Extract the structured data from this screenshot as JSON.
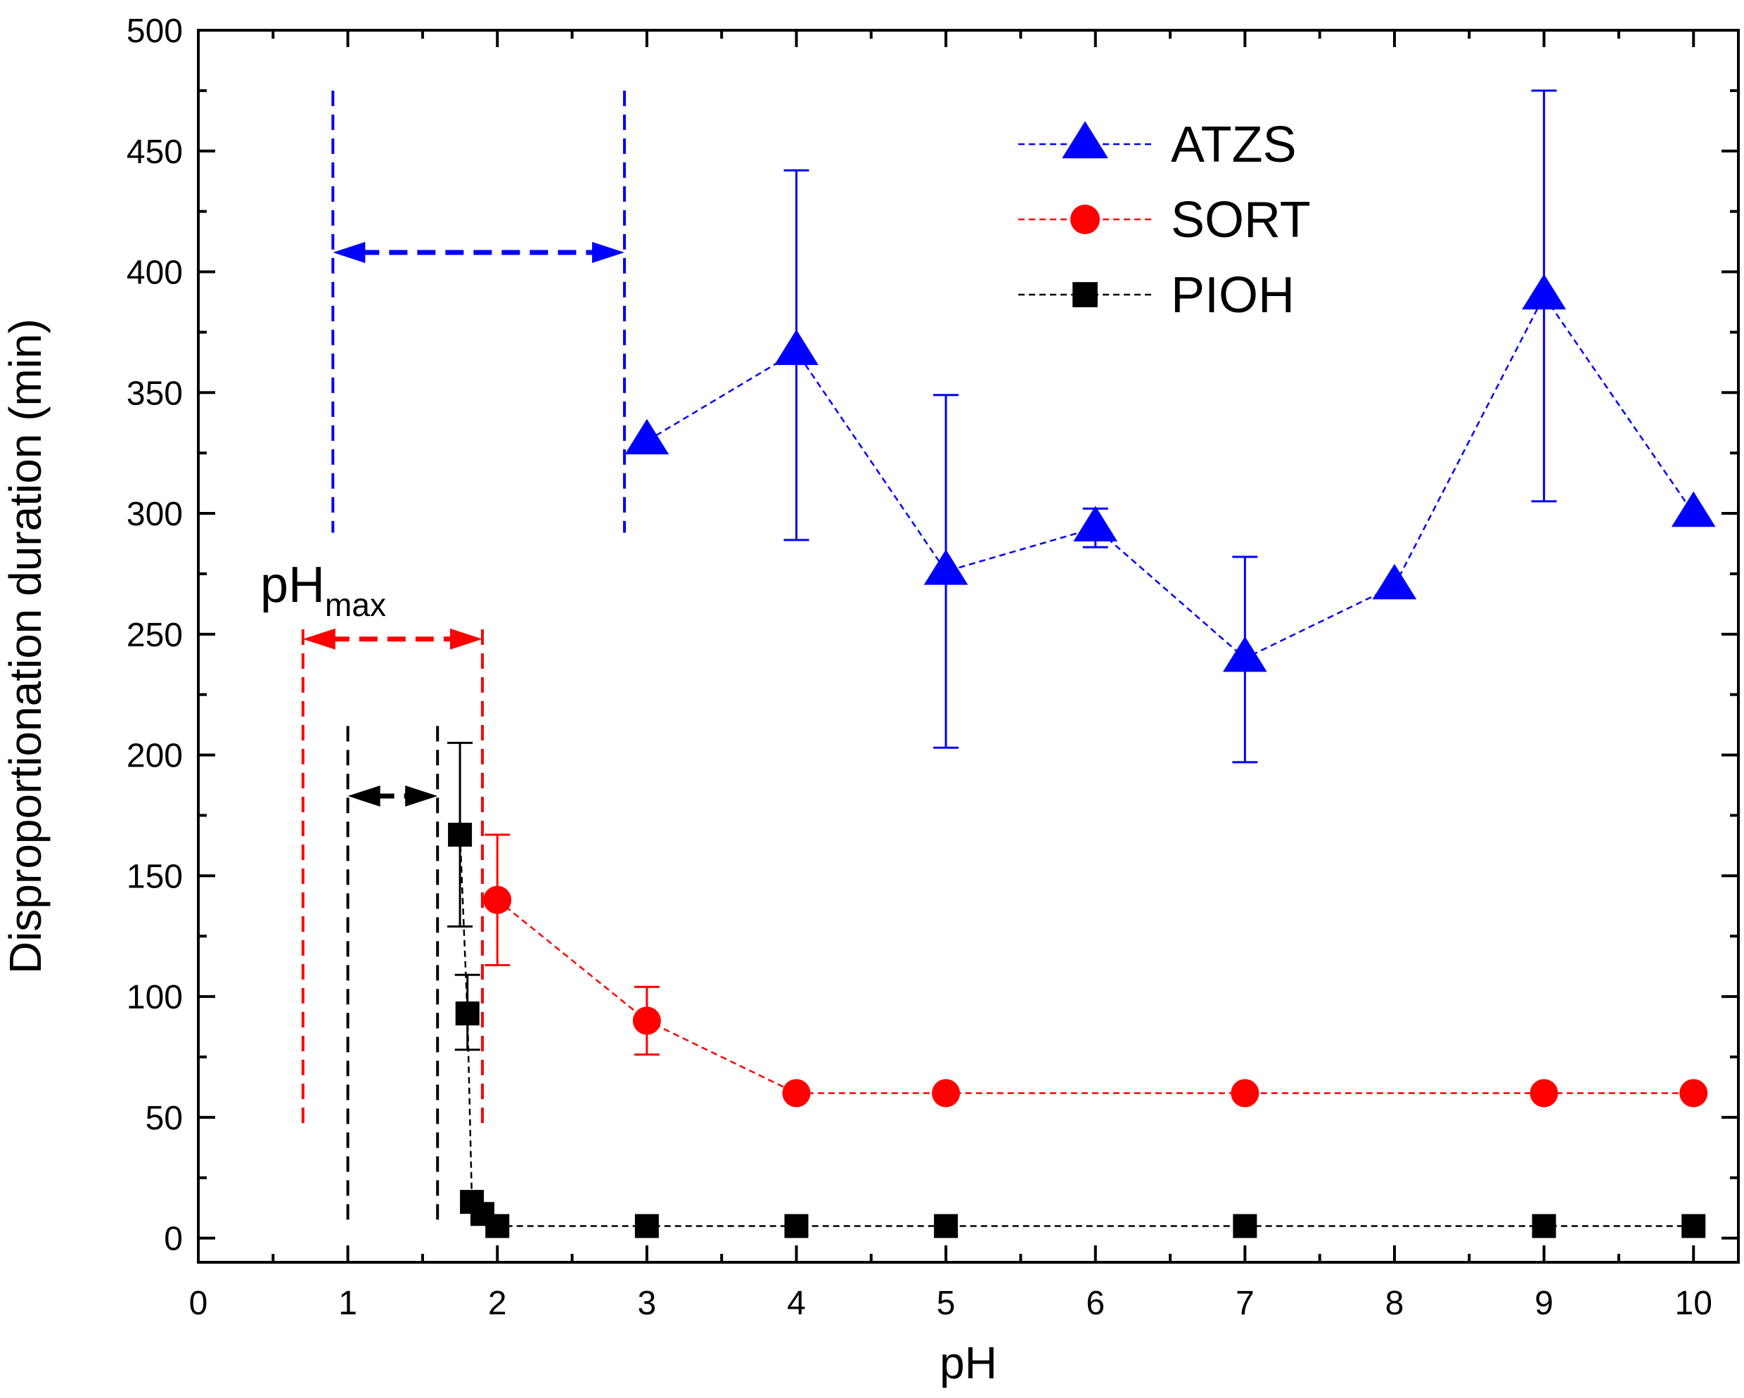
{
  "chart_data": {
    "type": "scatter",
    "xlabel": "pH",
    "ylabel": "Disproportionation duration (min)",
    "xlim": [
      0,
      10.3
    ],
    "ylim": [
      -10,
      500
    ],
    "xticks": [
      "0",
      "1",
      "2",
      "3",
      "4",
      "5",
      "6",
      "7",
      "8",
      "9",
      "10"
    ],
    "yticks": [
      "0",
      "50",
      "100",
      "150",
      "200",
      "250",
      "300",
      "350",
      "400",
      "450",
      "500"
    ],
    "grid": false,
    "legend_position": "top-right",
    "series": [
      {
        "name": "ATZS",
        "color": "#0000ff",
        "marker": "triangle",
        "x": [
          3,
          4,
          5,
          6,
          7,
          8,
          9,
          10
        ],
        "y": [
          330,
          367,
          276,
          294,
          240,
          270,
          390,
          300
        ],
        "err_low": [
          null,
          289,
          203,
          286,
          197,
          null,
          305,
          null
        ],
        "err_high": [
          null,
          442,
          349,
          302,
          282,
          null,
          475,
          null
        ]
      },
      {
        "name": "SORT",
        "color": "#ff0000",
        "marker": "circle",
        "x": [
          2,
          3,
          4,
          5,
          7,
          9,
          10
        ],
        "y": [
          140,
          90,
          60,
          60,
          60,
          60,
          60
        ],
        "err_low": [
          113,
          76,
          null,
          null,
          null,
          null,
          null
        ],
        "err_high": [
          167,
          104,
          null,
          null,
          null,
          null,
          null
        ]
      },
      {
        "name": "PIOH",
        "color": "#000000",
        "marker": "square",
        "x": [
          1.75,
          1.8,
          1.83,
          1.9,
          2,
          3,
          4,
          5,
          7,
          9,
          10
        ],
        "y": [
          167,
          93,
          15,
          10,
          5,
          5,
          5,
          5,
          5,
          5,
          5
        ],
        "err_low": [
          129,
          78,
          null,
          null,
          null,
          null,
          null,
          null,
          null,
          null,
          null
        ],
        "err_high": [
          205,
          109,
          null,
          null,
          null,
          null,
          null,
          null,
          null,
          null,
          null
        ]
      }
    ],
    "annotations": {
      "label_main": "pH",
      "label_sub": "max",
      "ranges": [
        {
          "color": "#0000ff",
          "x1": 0.9,
          "x2": 2.85,
          "y_arrow": 408,
          "y_top": 475,
          "y_bottom": 292
        },
        {
          "color": "#ff0000",
          "x1": 0.7,
          "x2": 1.9,
          "y_arrow": 248,
          "y_top": 252,
          "y_bottom": 45
        },
        {
          "color": "#000000",
          "x1": 1.0,
          "x2": 1.6,
          "y_arrow": 183,
          "y_top": 212,
          "y_bottom": 6
        }
      ]
    }
  }
}
